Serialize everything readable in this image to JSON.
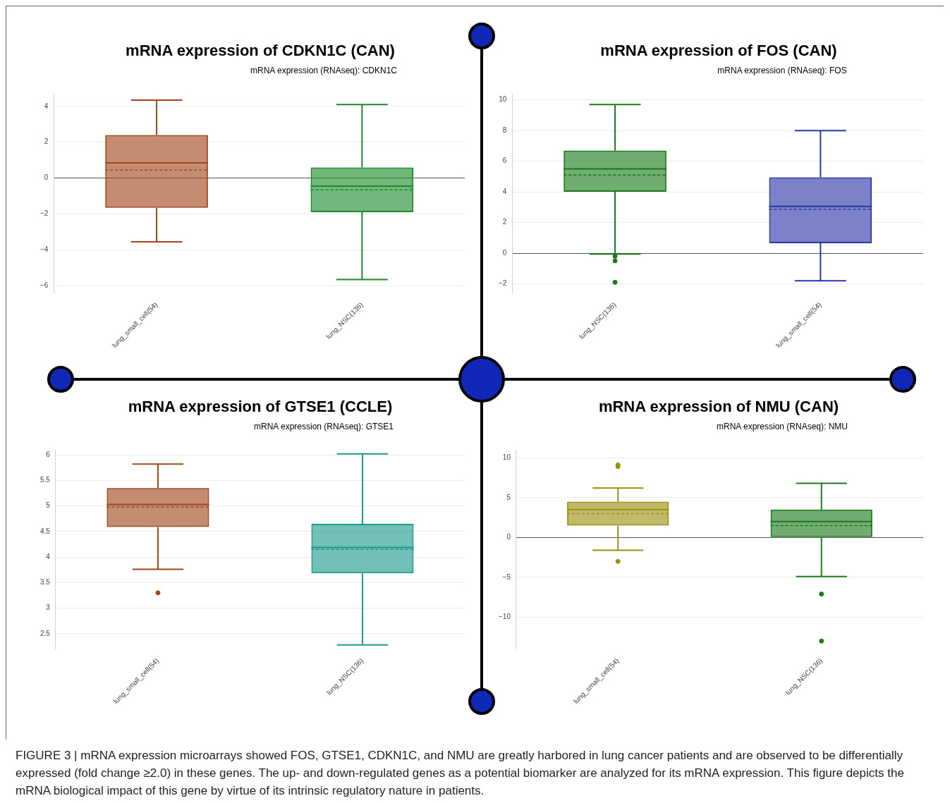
{
  "chart_data": [
    {
      "type": "box",
      "title": "mRNA expression of CDKN1C (CAN)",
      "subtitle": "mRNA expression (RNAseq): CDKN1C",
      "categories": [
        "lung_small_cell(54)",
        "lung_NSC(136)"
      ],
      "colors": [
        "#a0461a",
        "#1a8a2a"
      ],
      "boxes": [
        {
          "low": -3.55,
          "q1": -1.65,
          "median": 0.85,
          "q3": 2.4,
          "high": 4.35,
          "mean": 0.45
        },
        {
          "low": -5.65,
          "q1": -1.9,
          "median": -0.45,
          "q3": 0.6,
          "high": 4.1,
          "mean": -0.65
        }
      ],
      "ylim": [
        -6.4,
        4.7
      ],
      "yticks": [
        {
          "value": -6,
          "label": "−6"
        },
        {
          "value": -4,
          "label": "−4"
        },
        {
          "value": -2,
          "label": "−2"
        },
        0,
        2,
        4
      ],
      "grid": "y"
    },
    {
      "type": "box",
      "title": "mRNA expression of FOS (CAN)",
      "subtitle": "mRNA expression (RNAseq): FOS",
      "categories": [
        "lung_NSC(136)",
        "lung_small_cell(54)"
      ],
      "colors": [
        "#1a7a1a",
        "#2a35a8"
      ],
      "boxes": [
        {
          "low": -0.05,
          "q1": 4.0,
          "median": 5.5,
          "q3": 6.7,
          "high": 9.7,
          "mean": 5.1,
          "outliers": [
            -0.2,
            -0.5,
            -1.9
          ]
        },
        {
          "low": -1.8,
          "q1": 0.65,
          "median": 3.05,
          "q3": 4.95,
          "high": 8.0,
          "mean": 2.85
        }
      ],
      "ylim": [
        -2.6,
        10.4
      ],
      "yticks": [
        {
          "value": -2,
          "label": "−2"
        },
        0,
        2,
        4,
        6,
        8,
        10
      ],
      "grid": "y"
    },
    {
      "type": "box",
      "title": "mRNA expression of GTSE1 (CCLE)",
      "subtitle": "mRNA expression (RNAseq): GTSE1",
      "categories": [
        "lung_small_cell(54)",
        "lung_NSC(136)"
      ],
      "colors": [
        "#a0461a",
        "#1a9a8a"
      ],
      "boxes": [
        {
          "low": 3.76,
          "q1": 4.59,
          "median": 5.03,
          "q3": 5.35,
          "high": 5.82,
          "mean": 4.98,
          "outliers": [
            3.3
          ]
        },
        {
          "low": 2.28,
          "q1": 3.68,
          "median": 4.19,
          "q3": 4.65,
          "high": 6.02,
          "mean": 4.15
        }
      ],
      "ylim": [
        2.2,
        6.1
      ],
      "yticks": [
        2.5,
        3,
        3.5,
        4,
        4.5,
        5,
        5.5,
        6
      ],
      "grid": "y"
    },
    {
      "type": "box",
      "title": "mRNA expression of NMU (CAN)",
      "subtitle": "mRNA expression (RNAseq): NMU",
      "categories": [
        "lung_small_cell(54)",
        "lung_NSC(136)"
      ],
      "colors": [
        "#9a9010",
        "#1a7a1a"
      ],
      "boxes": [
        {
          "low": -1.6,
          "q1": 1.5,
          "median": 3.5,
          "q3": 4.5,
          "high": 6.2,
          "mean": 3.0,
          "outliers": [
            9.1,
            8.9,
            -3.0
          ]
        },
        {
          "low": -4.9,
          "q1": 0.0,
          "median": 2.0,
          "q3": 3.5,
          "high": 6.8,
          "mean": 1.5,
          "outliers": [
            -7.1,
            -13.0
          ]
        }
      ],
      "ylim": [
        -14,
        11
      ],
      "yticks": [
        {
          "value": -10,
          "label": "−10"
        },
        {
          "value": -5,
          "label": "−5"
        },
        0,
        5,
        10
      ],
      "grid": "y",
      "annotations": [
        "FIGURE 3 | mRNA expression microarrays showed FOS, GTSE1, CDKN1C, and NMU are greatly harbored in lung cancer patients and are observed to be differentially expressed (fold change ≥2.0) in these genes. The up- and down-regulated genes as a potential biomarker are analyzed for its mRNA expression. This figure depicts the mRNA biological impact of this gene by virtue of its intrinsic regulatory nature in patients."
      ]
    }
  ]
}
